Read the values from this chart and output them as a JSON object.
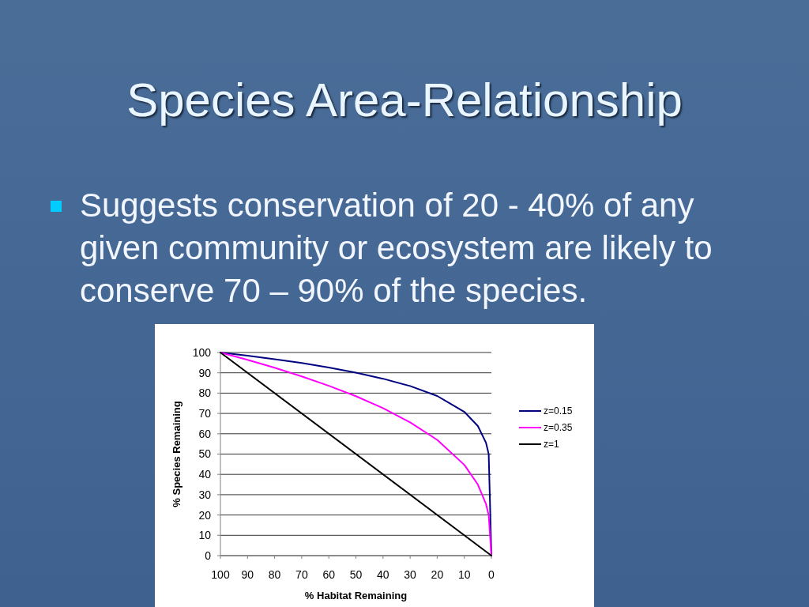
{
  "chart_data": {
    "type": "line",
    "title": "Species Area-Relationship",
    "subtitle": "Suggests conservation of 20 - 40% of any given community or ecosystem are likely to conserve 70 – 90% of the species.",
    "xlabel": "% Habitat Remaining",
    "ylabel": "% Species Remaining",
    "series": [
      {
        "name": "z=0.15",
        "color": "#000080",
        "x": [
          100,
          90,
          80,
          70,
          60,
          50,
          40,
          30,
          20,
          10,
          5,
          2,
          1,
          0
        ],
        "values": [
          100,
          98.4,
          96.7,
          94.8,
          92.6,
          90.1,
          87.1,
          83.5,
          78.6,
          70.8,
          63.8,
          55.6,
          50,
          0
        ]
      },
      {
        "name": "z=0.35",
        "color": "#ff00ff",
        "x": [
          100,
          90,
          80,
          70,
          60,
          50,
          40,
          30,
          20,
          10,
          5,
          2,
          1,
          0
        ],
        "values": [
          100,
          96.4,
          92.5,
          88.2,
          83.6,
          78.5,
          72.6,
          65.6,
          57,
          44.7,
          35,
          25.4,
          20,
          0
        ]
      },
      {
        "name": "z=1",
        "color": "#000000",
        "x": [
          100,
          0
        ],
        "values": [
          100,
          0
        ]
      }
    ],
    "xlim": [
      100,
      0
    ],
    "xticks": [
      100,
      90,
      80,
      70,
      60,
      50,
      40,
      30,
      20,
      10,
      0
    ],
    "ylim": [
      0,
      100
    ],
    "yticks": [
      0,
      10,
      20,
      30,
      40,
      50,
      60,
      70,
      80,
      90,
      100
    ],
    "grid": "y",
    "legend": "right",
    "marker": "none",
    "line_style": "solid"
  }
}
